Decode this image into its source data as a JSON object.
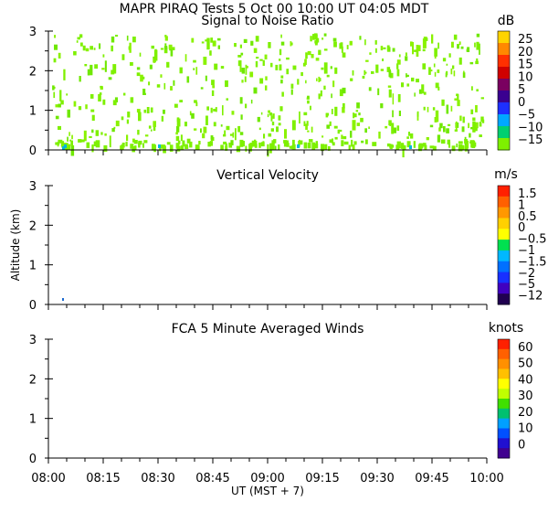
{
  "header": {
    "title": "MAPR PIRAQ Tests  5 Oct 00  10:00 UT  04:05  MDT"
  },
  "chart_data": [
    {
      "type": "heatmap",
      "title": "Signal to Noise Ratio",
      "colorbar_unit": "dB",
      "ylim": [
        0,
        3
      ],
      "yticks": [
        "0",
        "1",
        "2",
        "3"
      ],
      "xlim": [
        "08:00",
        "10:00"
      ],
      "colorbar_labels": [
        "25",
        "20",
        "15",
        "10",
        "5",
        "0",
        "−5",
        "−10",
        "−15"
      ],
      "colorbar_colors": [
        "#ffd400",
        "#ff8800",
        "#ff3000",
        "#d00000",
        "#7a0060",
        "#3a0090",
        "#1e30ff",
        "#00a8ff",
        "#00d070",
        "#7ef000"
      ],
      "field": "sparse weak echoes near −15 dB throughout 0–3 km, stronger near surface"
    },
    {
      "type": "heatmap",
      "title": "Vertical Velocity",
      "colorbar_unit": "m/s",
      "ylabel": "Altitude (km)",
      "ylim": [
        0,
        3
      ],
      "yticks": [
        "0",
        "1",
        "2",
        "3"
      ],
      "xlim": [
        "08:00",
        "10:00"
      ],
      "colorbar_labels": [
        "1.5",
        "1",
        "0.5",
        "0",
        "−0.5",
        "−1",
        "−1.5",
        "−2",
        "−5",
        "−12"
      ],
      "colorbar_colors": [
        "#ff2000",
        "#ff6000",
        "#ff9800",
        "#ffd000",
        "#ffff00",
        "#00e050",
        "#00b8ff",
        "#0070ff",
        "#1830ff",
        "#4000c0",
        "#200050"
      ]
    },
    {
      "type": "heatmap",
      "title": "FCA 5 Minute Averaged Winds",
      "colorbar_unit": "knots",
      "ylim": [
        0,
        3
      ],
      "yticks": [
        "0",
        "1",
        "2",
        "3"
      ],
      "xlim": [
        "08:00",
        "10:00"
      ],
      "xticks": [
        "08:00",
        "08:15",
        "08:30",
        "08:45",
        "09:00",
        "09:15",
        "09:30",
        "09:45",
        "10:00"
      ],
      "xlabel": "UT  (MST + 7)",
      "colorbar_labels": [
        "60",
        "50",
        "40",
        "30",
        "20",
        "10",
        "0"
      ],
      "colorbar_colors": [
        "#ff2000",
        "#ff6000",
        "#ff9000",
        "#ffc000",
        "#ffff00",
        "#c0ff00",
        "#40e000",
        "#00c070",
        "#00a0ff",
        "#0050ff",
        "#2010d0",
        "#400090"
      ]
    }
  ]
}
